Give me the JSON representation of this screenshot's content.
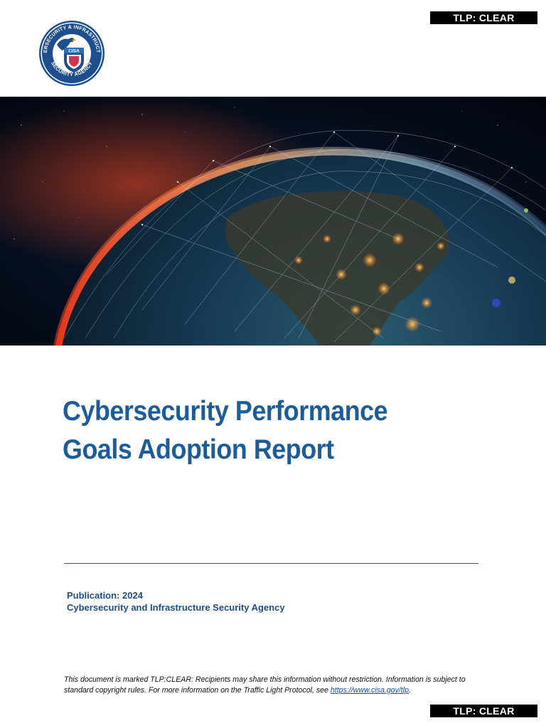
{
  "tlp": {
    "top_label": "TLP: CLEAR",
    "bottom_label": "TLP: CLEAR"
  },
  "logo": {
    "ring_text_top": "CYBERSECURITY & INFRASTRUCTURE",
    "ring_text_bottom": "SECURITY AGENCY",
    "center_text": "CISA"
  },
  "hero": {
    "icon": "earth-network-image"
  },
  "title": {
    "line1": "Cybersecurity Performance",
    "line2": "Goals Adoption Report"
  },
  "publication": {
    "date_line": "Publication: 2024",
    "agency": "Cybersecurity and Infrastructure Security Agency"
  },
  "disclaimer": {
    "text_before_link": "This document is marked TLP:CLEAR: Recipients may share this information without restriction. Information is subject to standard copyright rules. For more information on the Traffic Light Protocol, see ",
    "link_text": "https://www.cisa.gov/tlp",
    "text_after_link": "."
  },
  "colors": {
    "title": "#1b5d9a",
    "rule": "#1f5f97",
    "tlp_bg": "#000000",
    "link": "#1a4fa8"
  }
}
